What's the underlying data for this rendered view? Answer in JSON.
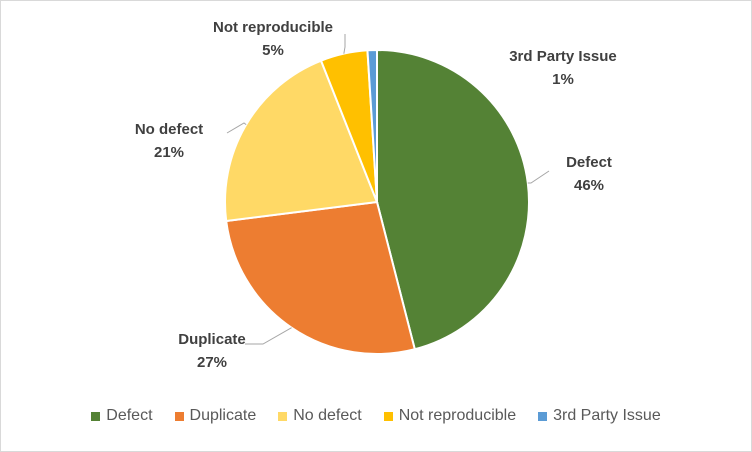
{
  "chart_data": {
    "type": "pie",
    "title": "",
    "slices": [
      {
        "label": "Defect",
        "value": 46,
        "display": "46%",
        "color": "#548235"
      },
      {
        "label": "Duplicate",
        "value": 27,
        "display": "27%",
        "color": "#ed7d31"
      },
      {
        "label": "No defect",
        "value": 21,
        "display": "21%",
        "color": "#ffd966"
      },
      {
        "label": "Not reproducible",
        "value": 5,
        "display": "5%",
        "color": "#ffc000"
      },
      {
        "label": "3rd Party Issue",
        "value": 1,
        "display": "1%",
        "color": "#5b9bd5"
      }
    ],
    "legend_position": "bottom",
    "data_labels": "outside with leader lines"
  }
}
